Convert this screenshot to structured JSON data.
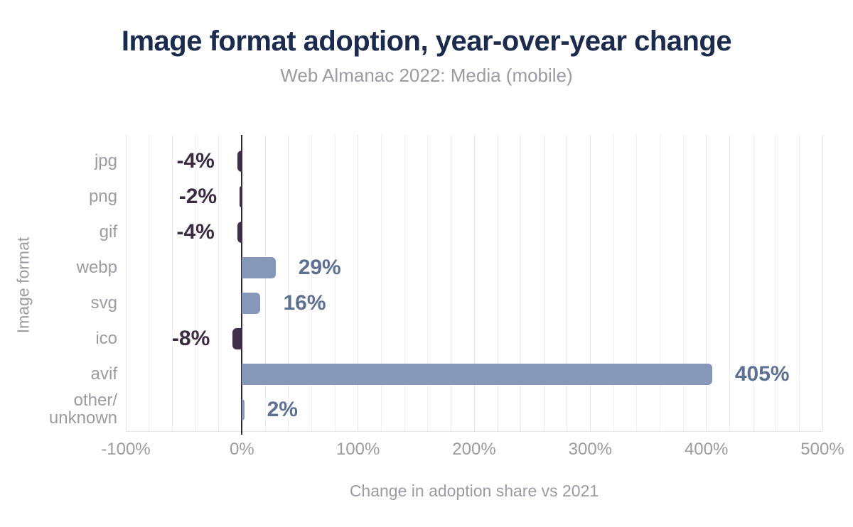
{
  "header": {
    "title": "Image format adoption, year-over-year change",
    "subtitle": "Web Almanac 2022: Media (mobile)"
  },
  "chart_data": {
    "type": "bar",
    "orientation": "horizontal",
    "title": "Image format adoption, year-over-year change",
    "subtitle": "Web Almanac 2022: Media (mobile)",
    "categories": [
      "jpg",
      "png",
      "gif",
      "webp",
      "svg",
      "ico",
      "avif",
      "other/unknown"
    ],
    "category_display_labels": [
      "jpg",
      "png",
      "gif",
      "webp",
      "svg",
      "ico",
      "avif",
      "other/\nunknown"
    ],
    "values": [
      -4,
      -2,
      -4,
      29,
      16,
      -8,
      405,
      2
    ],
    "value_labels": [
      "-4%",
      "-2%",
      "-4%",
      "29%",
      "16%",
      "-8%",
      "405%",
      "2%"
    ],
    "xlabel": "Change in adoption share vs 2021",
    "ylabel": "Image format",
    "xlim": [
      -100,
      500
    ],
    "xticks": [
      {
        "label": "-100%",
        "value": -100
      },
      {
        "label": "0%",
        "value": 0
      },
      {
        "label": "100%",
        "value": 100
      },
      {
        "label": "200%",
        "value": 200
      },
      {
        "label": "300%",
        "value": 300
      },
      {
        "label": "400%",
        "value": 400
      },
      {
        "label": "500%",
        "value": 500
      }
    ],
    "grid": {
      "show": true,
      "minor_step": 20,
      "major_step": 100
    },
    "legend": "none",
    "colors": {
      "title": "#1b2b4e",
      "muted_text": "#9b9ba3",
      "positive_bar": "#8598ba",
      "positive_label": "#5c7094",
      "negative_bar": "#422e48",
      "negative_label": "#3d2a43",
      "zero_line": "#32233c",
      "grid_minor": "#f0f0f3",
      "grid_major": "#e4e4ea"
    }
  }
}
